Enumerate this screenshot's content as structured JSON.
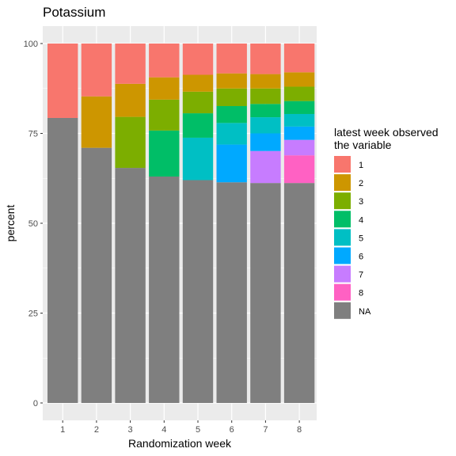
{
  "chart_data": {
    "type": "bar",
    "stacked": true,
    "title": "Potassium",
    "xlabel": "Randomization week",
    "ylabel": "percent",
    "ylim": [
      0,
      100
    ],
    "yticks": [
      0,
      25,
      50,
      75,
      100
    ],
    "categories": [
      "1",
      "2",
      "3",
      "4",
      "5",
      "6",
      "7",
      "8"
    ],
    "legend": {
      "title_lines": [
        "latest week observed",
        " the variable"
      ],
      "placement": "right"
    },
    "grid": true,
    "series": [
      {
        "name": "NA",
        "color": "#7f7f7f",
        "values": [
          79.3,
          71.0,
          65.4,
          63.0,
          62.0,
          61.4,
          61.2,
          61.2
        ]
      },
      {
        "name": "8",
        "color": "#ff61c3",
        "values": [
          0,
          0,
          0,
          0,
          0,
          0,
          0,
          7.7
        ]
      },
      {
        "name": "7",
        "color": "#c77cff",
        "values": [
          0,
          0,
          0,
          0,
          0,
          0,
          8.9,
          4.3
        ]
      },
      {
        "name": "6",
        "color": "#00a9ff",
        "values": [
          0,
          0,
          0,
          0,
          0,
          10.5,
          4.9,
          3.7
        ]
      },
      {
        "name": "5",
        "color": "#00bfc4",
        "values": [
          0,
          0,
          0,
          0,
          11.8,
          6.0,
          4.5,
          3.5
        ]
      },
      {
        "name": "4",
        "color": "#00be67",
        "values": [
          0,
          0,
          0,
          12.8,
          6.8,
          4.7,
          3.7,
          3.6
        ]
      },
      {
        "name": "3",
        "color": "#7cae00",
        "values": [
          0,
          0,
          14.2,
          8.6,
          6.0,
          4.9,
          4.3,
          4.0
        ]
      },
      {
        "name": "2",
        "color": "#cd9600",
        "values": [
          0,
          14.3,
          9.2,
          6.2,
          4.7,
          4.2,
          4.0,
          4.0
        ]
      },
      {
        "name": "1",
        "color": "#f8766d",
        "values": [
          20.7,
          14.7,
          11.2,
          9.4,
          8.7,
          8.3,
          8.5,
          8.0
        ]
      }
    ],
    "legend_order": [
      "1",
      "2",
      "3",
      "4",
      "5",
      "6",
      "7",
      "8",
      "NA"
    ]
  }
}
